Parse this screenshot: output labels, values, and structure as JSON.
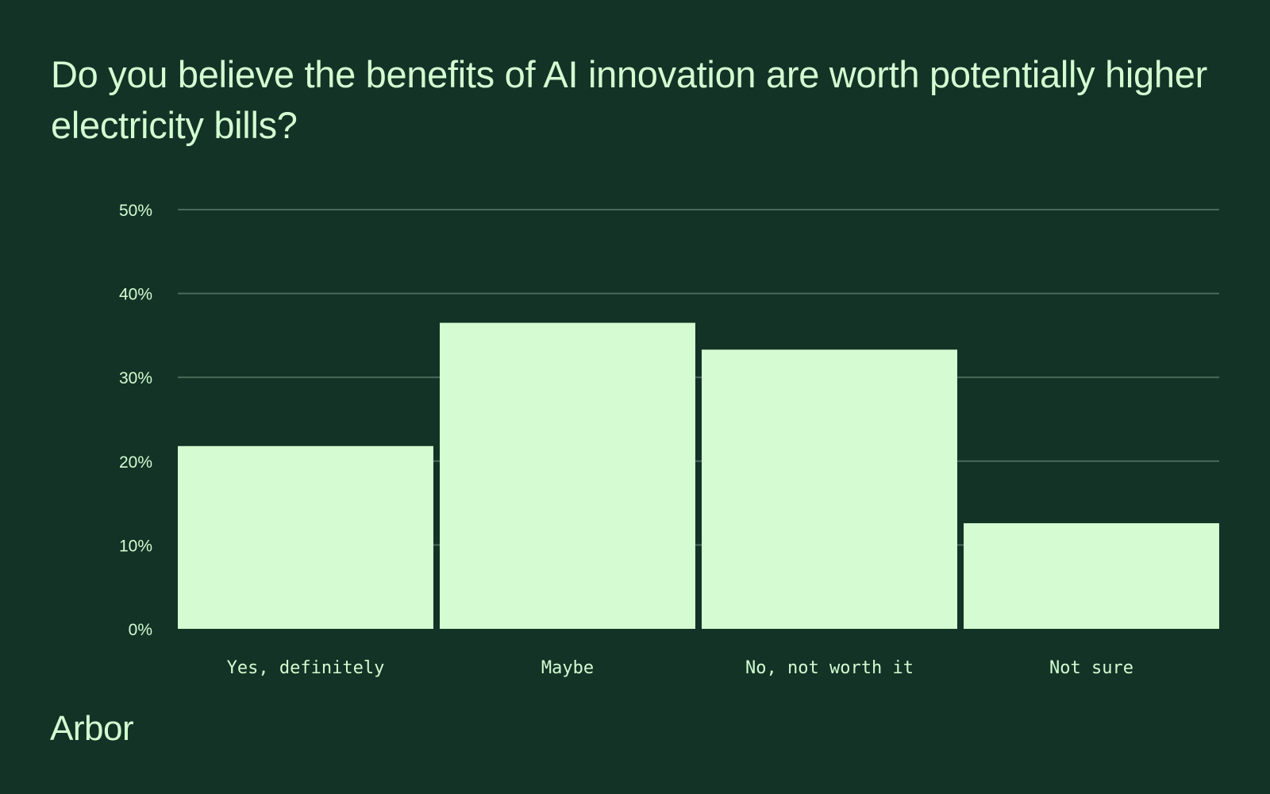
{
  "chart_data": {
    "type": "bar",
    "title": "Do you believe the benefits of AI innovation are worth potentially higher electricity bills?",
    "categories": [
      "Yes, definitely",
      "Maybe",
      "No, not worth it",
      "Not sure"
    ],
    "values": [
      21.8,
      36.5,
      33.3,
      12.6
    ],
    "xlabel": "",
    "ylabel": "",
    "ylim": [
      0,
      50
    ],
    "yticks": [
      0,
      10,
      20,
      30,
      40,
      50
    ],
    "ytick_labels": [
      "0%",
      "10%",
      "20%",
      "30%",
      "40%",
      "50%"
    ],
    "grid": true
  },
  "brand": {
    "name": "Arbor"
  },
  "colors": {
    "background": "#133326",
    "bar": "#d4fbd1",
    "text": "#d4fbd1",
    "grid": "#4a6a5a"
  }
}
